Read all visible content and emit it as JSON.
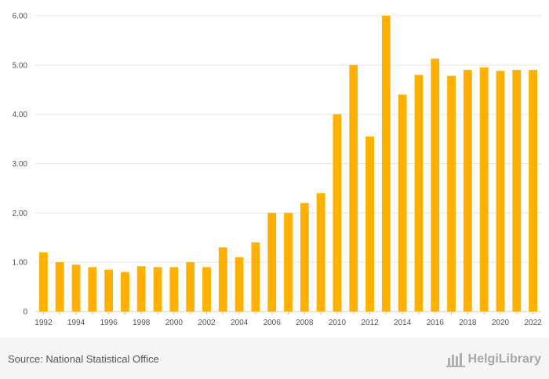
{
  "chart_data": {
    "type": "bar",
    "categories": [
      "1992",
      "1993",
      "1994",
      "1995",
      "1996",
      "1997",
      "1998",
      "1999",
      "2000",
      "2001",
      "2002",
      "2003",
      "2004",
      "2005",
      "2006",
      "2007",
      "2008",
      "2009",
      "2010",
      "2011",
      "2012",
      "2013",
      "2014",
      "2015",
      "2016",
      "2017",
      "2018",
      "2019",
      "2020",
      "2021",
      "2022"
    ],
    "values": [
      1.2,
      1.0,
      0.95,
      0.9,
      0.85,
      0.8,
      0.92,
      0.9,
      0.9,
      1.0,
      0.9,
      1.3,
      1.1,
      1.4,
      2.0,
      2.0,
      2.2,
      2.4,
      4.0,
      5.0,
      3.55,
      6.0,
      4.4,
      4.8,
      5.13,
      4.78,
      4.9,
      4.95,
      4.88,
      4.9,
      4.9
    ],
    "x_tick_labels": [
      "1992",
      "1994",
      "1996",
      "1998",
      "2000",
      "2002",
      "2004",
      "2006",
      "2008",
      "2010",
      "2012",
      "2014",
      "2016",
      "2018",
      "2020",
      "2022"
    ],
    "y_tick_labels": [
      "0",
      "1.00",
      "2.00",
      "3.00",
      "4.00",
      "5.00",
      "6.00"
    ],
    "ylim": [
      0,
      6
    ],
    "title": "",
    "xlabel": "",
    "ylabel": "",
    "grid": true,
    "bar_color": "#ffb000"
  },
  "footer": {
    "source": "Source: National Statistical Office",
    "logo_text": "HelgiLibrary",
    "logo_icon": "helgi-library-logo-icon"
  }
}
